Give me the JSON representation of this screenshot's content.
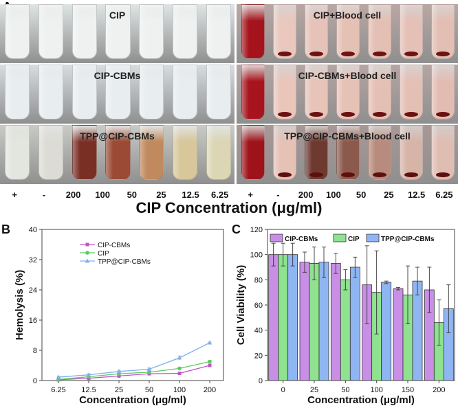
{
  "panel_a": {
    "label": "A",
    "left_photos": [
      {
        "title": "CIP",
        "tint": "#dfe4e4",
        "tubes": [
          "#eef1f0",
          "#eef1f0",
          "#eef1f0",
          "#eef1f0",
          "#eef1f0",
          "#eef1f0",
          "#eef1f0"
        ]
      },
      {
        "title": "CIP-CBMs",
        "tint": "#d7dde0",
        "tubes": [
          "#e8edf0",
          "#e8edf0",
          "#e8edf0",
          "#e8edf0",
          "#e8edf0",
          "#e8edf0",
          "#e8edf0"
        ]
      },
      {
        "title": "TPP@CIP-CBMs",
        "tint": "#c8cbc6",
        "tubes": [
          "#e3e5df",
          "#dcdcd4",
          "#7a2f25",
          "#9a4a35",
          "#c08a5e",
          "#d7c79a",
          "#dcd6b4"
        ]
      }
    ],
    "right_photos": [
      {
        "title": "CIP+Blood cell",
        "tint": "#b9a7a4",
        "tubes": [
          "#a5141c",
          "#e9c7bd",
          "#e6c2b8",
          "#e5c0b5",
          "#e3bfb4",
          "#e4c0b6",
          "#e3beb3"
        ],
        "pellet": "#6e1212"
      },
      {
        "title": "CIP-CBMs+Blood cell",
        "tint": "#b6a5a2",
        "tubes": [
          "#a8141d",
          "#e9c5ba",
          "#e7c3b8",
          "#e6c1b6",
          "#e4bfb4",
          "#e4bfb4",
          "#e2bcb2"
        ],
        "pellet": "#6b1111"
      },
      {
        "title": "TPP@CIP-CBMs+Blood cell",
        "tint": "#a89896",
        "tubes": [
          "#9e1219",
          "#e5c1b6",
          "#6e3a30",
          "#8c5a4c",
          "#b78c7e",
          "#d7b4a8",
          "#e0bdb2"
        ],
        "pellet": "#5f0f0f"
      }
    ],
    "left_concentrations": [
      "+",
      "-",
      "200",
      "100",
      "50",
      "25",
      "12.5",
      "6.25"
    ],
    "right_concentrations": [
      "+",
      "-",
      "200",
      "100",
      "50",
      "25",
      "12.5",
      "6.25"
    ],
    "xlabel": "CIP Concentration (μg/ml)"
  },
  "chart_data": [
    {
      "type": "line",
      "panel": "B",
      "categories": [
        "6.25",
        "12.5",
        "25",
        "50",
        "100",
        "200"
      ],
      "series": [
        {
          "name": "CIP-CBMs",
          "color": "#c056c8",
          "marker": "square",
          "values": [
            0.2,
            0.6,
            1.2,
            1.8,
            1.9,
            4.0
          ],
          "errors": [
            0.1,
            0.1,
            0.2,
            0.2,
            0.2,
            0.3
          ]
        },
        {
          "name": "CIP",
          "color": "#5cc95c",
          "marker": "circle",
          "values": [
            0.3,
            1.0,
            1.8,
            2.2,
            3.2,
            5.0
          ],
          "errors": [
            0.1,
            0.2,
            0.2,
            0.3,
            0.3,
            0.3
          ]
        },
        {
          "name": "TPP@CIP-CBMs",
          "color": "#7fb0ea",
          "marker": "triangle",
          "values": [
            0.9,
            1.5,
            2.4,
            3.0,
            6.0,
            10.0
          ],
          "errors": [
            0.2,
            0.3,
            0.3,
            0.3,
            0.5,
            0.2
          ]
        }
      ],
      "xlabel": "Concentration (μg/ml)",
      "ylabel": "Hemolysis (%)",
      "ylim": [
        0,
        40
      ],
      "yticks": [
        0,
        8,
        16,
        24,
        32,
        40
      ],
      "legend": "top-left"
    },
    {
      "type": "bar",
      "panel": "C",
      "categories": [
        "0",
        "25",
        "50",
        "100",
        "150",
        "200"
      ],
      "series": [
        {
          "name": "CIP-CBMs",
          "color": "#c98fe6",
          "values": [
            100,
            94,
            93,
            76,
            73,
            72
          ],
          "errors": [
            9,
            8,
            8,
            31,
            1,
            18
          ]
        },
        {
          "name": "CIP",
          "color": "#8fe28f",
          "values": [
            100,
            93,
            80,
            70,
            68,
            46
          ],
          "errors": [
            9,
            13,
            8,
            33,
            23,
            18
          ]
        },
        {
          "name": "TPP@CIP-CBMs",
          "color": "#8fb6f2",
          "values": [
            100,
            94,
            90,
            78,
            79,
            57
          ],
          "errors": [
            9,
            12,
            8,
            1,
            11,
            19
          ]
        }
      ],
      "xlabel": "Concentration (μg/ml)",
      "ylabel": "Cell Viability (%)",
      "ylim": [
        0,
        120
      ],
      "yticks": [
        0,
        20,
        40,
        60,
        80,
        100,
        120
      ],
      "legend": "top"
    }
  ]
}
